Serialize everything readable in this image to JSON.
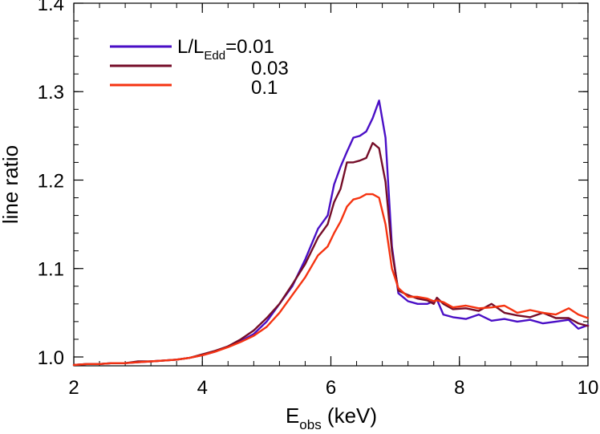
{
  "chart_data": {
    "type": "line",
    "xlabel": "E",
    "xlabel_subscript": "obs",
    "xlabel_unit": " (keV)",
    "ylabel": "line ratio",
    "xlim": [
      2,
      10
    ],
    "ylim": [
      0.99,
      1.4
    ],
    "xticks": [
      2,
      4,
      6,
      8,
      10
    ],
    "xtick_labels": [
      "2",
      "4",
      "6",
      "8",
      "10"
    ],
    "yticks": [
      1.0,
      1.1,
      1.2,
      1.3,
      1.4
    ],
    "ytick_labels": [
      "1.0",
      "1.1",
      "1.2",
      "1.3",
      "1.4"
    ],
    "grid": false,
    "legend_placement": "top-left",
    "legend_title_main": "L/L",
    "legend_title_sub": "Edd",
    "series": [
      {
        "name": "0.01",
        "color": "#4a0fc6",
        "x": [
          2.0,
          2.2,
          2.4,
          2.6,
          2.8,
          3.0,
          3.2,
          3.4,
          3.6,
          3.8,
          4.0,
          4.2,
          4.4,
          4.6,
          4.8,
          5.0,
          5.2,
          5.4,
          5.6,
          5.8,
          5.95,
          6.05,
          6.15,
          6.25,
          6.35,
          6.45,
          6.55,
          6.65,
          6.75,
          6.85,
          6.95,
          7.05,
          7.2,
          7.35,
          7.5,
          7.6,
          7.65,
          7.75,
          7.9,
          8.1,
          8.3,
          8.5,
          8.7,
          8.9,
          9.1,
          9.3,
          9.5,
          9.7,
          9.85,
          10.0
        ],
        "y": [
          0.991,
          0.992,
          0.992,
          0.993,
          0.993,
          0.994,
          0.995,
          0.996,
          0.997,
          0.999,
          1.002,
          1.006,
          1.012,
          1.018,
          1.026,
          1.04,
          1.06,
          1.08,
          1.11,
          1.145,
          1.16,
          1.195,
          1.215,
          1.232,
          1.248,
          1.25,
          1.255,
          1.27,
          1.29,
          1.248,
          1.125,
          1.072,
          1.063,
          1.06,
          1.06,
          1.063,
          1.065,
          1.048,
          1.045,
          1.043,
          1.048,
          1.041,
          1.043,
          1.04,
          1.042,
          1.038,
          1.04,
          1.042,
          1.032,
          1.036
        ]
      },
      {
        "name": "0.03",
        "color": "#750d28",
        "x": [
          2.0,
          2.2,
          2.4,
          2.6,
          2.8,
          3.0,
          3.2,
          3.4,
          3.6,
          3.8,
          4.0,
          4.2,
          4.4,
          4.6,
          4.8,
          5.0,
          5.2,
          5.4,
          5.6,
          5.8,
          5.95,
          6.05,
          6.15,
          6.25,
          6.35,
          6.45,
          6.55,
          6.65,
          6.75,
          6.85,
          6.95,
          7.05,
          7.2,
          7.35,
          7.5,
          7.6,
          7.65,
          7.75,
          7.9,
          8.1,
          8.3,
          8.5,
          8.7,
          8.9,
          9.1,
          9.3,
          9.5,
          9.7,
          9.85,
          10.0
        ],
        "y": [
          0.991,
          0.992,
          0.992,
          0.993,
          0.993,
          0.995,
          0.995,
          0.996,
          0.997,
          0.999,
          1.003,
          1.007,
          1.012,
          1.02,
          1.03,
          1.044,
          1.06,
          1.082,
          1.105,
          1.135,
          1.15,
          1.175,
          1.19,
          1.22,
          1.22,
          1.222,
          1.225,
          1.242,
          1.236,
          1.198,
          1.12,
          1.075,
          1.07,
          1.066,
          1.064,
          1.06,
          1.067,
          1.06,
          1.054,
          1.055,
          1.052,
          1.06,
          1.05,
          1.047,
          1.045,
          1.05,
          1.044,
          1.044,
          1.038,
          1.035
        ]
      },
      {
        "name": "0.1",
        "color": "#f53310",
        "x": [
          2.0,
          2.2,
          2.4,
          2.6,
          2.8,
          3.0,
          3.2,
          3.4,
          3.6,
          3.8,
          4.0,
          4.2,
          4.4,
          4.6,
          4.8,
          5.0,
          5.2,
          5.4,
          5.6,
          5.8,
          5.95,
          6.05,
          6.15,
          6.25,
          6.35,
          6.45,
          6.55,
          6.65,
          6.75,
          6.85,
          6.95,
          7.05,
          7.2,
          7.35,
          7.5,
          7.6,
          7.65,
          7.75,
          7.9,
          8.1,
          8.3,
          8.5,
          8.7,
          8.9,
          9.1,
          9.3,
          9.5,
          9.7,
          9.85,
          10.0
        ],
        "y": [
          0.991,
          0.992,
          0.992,
          0.993,
          0.993,
          0.994,
          0.995,
          0.996,
          0.997,
          0.999,
          1.002,
          1.006,
          1.011,
          1.017,
          1.024,
          1.034,
          1.05,
          1.07,
          1.09,
          1.115,
          1.125,
          1.14,
          1.153,
          1.17,
          1.178,
          1.18,
          1.184,
          1.184,
          1.18,
          1.15,
          1.1,
          1.078,
          1.068,
          1.068,
          1.066,
          1.063,
          1.064,
          1.062,
          1.056,
          1.058,
          1.055,
          1.056,
          1.058,
          1.05,
          1.053,
          1.05,
          1.048,
          1.055,
          1.048,
          1.044
        ]
      }
    ]
  }
}
